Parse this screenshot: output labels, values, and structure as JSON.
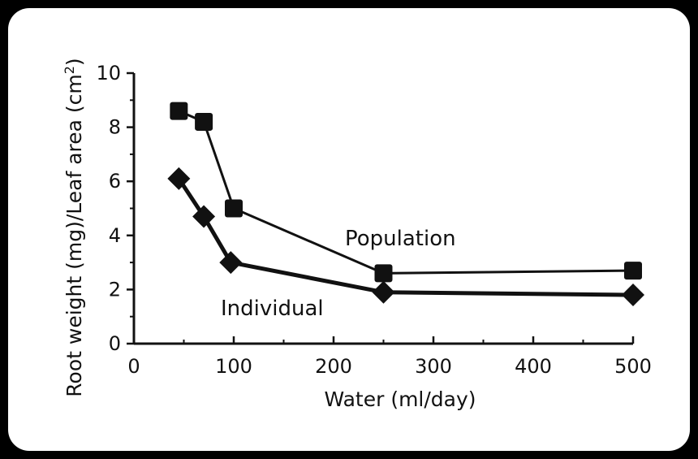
{
  "colors": {
    "background": "#000000",
    "panel": "#ffffff",
    "ink": "#111111"
  },
  "chart_data": {
    "type": "line",
    "title": "",
    "xlabel": "Water (ml/day)",
    "ylabel_main": "Root weight (mg)/Leaf area (cm",
    "ylabel_sup": "2",
    "ylabel_close": ")",
    "xlim": [
      0,
      500
    ],
    "ylim": [
      0,
      10
    ],
    "xticks": [
      0,
      100,
      200,
      300,
      400,
      500
    ],
    "yticks": [
      0,
      2,
      4,
      6,
      8,
      10
    ],
    "grid": false,
    "series": [
      {
        "name": "Population",
        "marker": "square",
        "x": [
          45,
          70,
          100,
          250,
          500
        ],
        "y": [
          8.6,
          8.2,
          5.0,
          2.6,
          2.7
        ]
      },
      {
        "name": "Individual",
        "marker": "diamond",
        "x": [
          45,
          70,
          97,
          250,
          500
        ],
        "y": [
          6.1,
          4.7,
          3.0,
          1.9,
          1.8
        ]
      }
    ]
  }
}
